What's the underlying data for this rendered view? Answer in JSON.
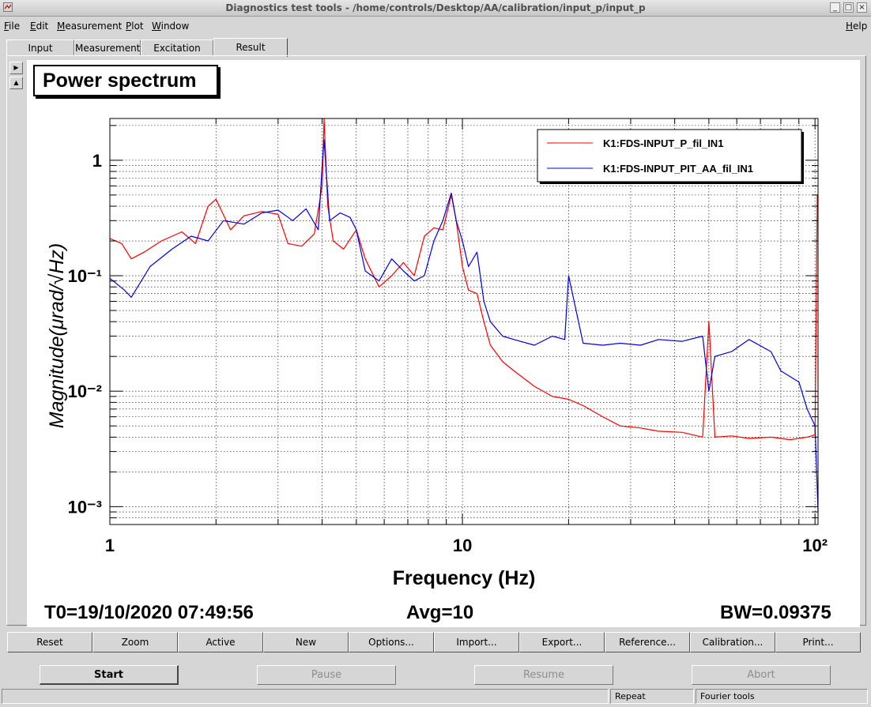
{
  "window": {
    "title": "Diagnostics test tools - /home/controls/Desktop/AA/calibration/input_p/input_p",
    "min_glyph": "_",
    "max_glyph": "□",
    "close_glyph": "×"
  },
  "menu": {
    "file": "F",
    "file_rest": "ile",
    "edit": "E",
    "edit_rest": "dit",
    "measurement": "M",
    "measurement_rest": "easurement",
    "plot": "P",
    "plot_rest": "lot",
    "window": "W",
    "window_rest": "indow",
    "help": "H",
    "help_rest": "elp"
  },
  "tabs": [
    "Input",
    "Measurement",
    "Excitation",
    "Result"
  ],
  "active_tab": "Result",
  "plot_title": "Power spectrum",
  "chart_data": {
    "type": "line",
    "xlabel": "Frequency (Hz)",
    "ylabel": "Magnitude(μrad/√Hz)",
    "xscale": "log",
    "yscale": "log",
    "xlim": [
      1,
      102
    ],
    "ylim": [
      0.0007,
      2.3
    ],
    "x_ticks": [
      "1",
      "10",
      "10²"
    ],
    "y_ticks": [
      "10⁻³",
      "10⁻²",
      "10⁻¹",
      "1"
    ],
    "grid": true,
    "legend_position": "top-right",
    "colors": {
      "red": "#ff0000",
      "blue": "#0000dd"
    },
    "series": [
      {
        "name": "K1:FDS-INPUT_P_fil_IN1",
        "color": "#ff0000",
        "x": [
          1,
          1.08,
          1.15,
          1.25,
          1.4,
          1.6,
          1.75,
          1.9,
          2.0,
          2.2,
          2.4,
          2.7,
          3.0,
          3.2,
          3.5,
          3.8,
          4.0,
          4.05,
          4.15,
          4.3,
          4.6,
          5.0,
          5.3,
          5.8,
          6.3,
          6.8,
          7.3,
          7.8,
          8.3,
          8.8,
          9.3,
          9.6,
          10.0,
          10.4,
          11.0,
          11.5,
          12.0,
          13.0,
          14.0,
          16.0,
          18.0,
          20.0,
          22.0,
          25.0,
          28.0,
          32.0,
          36.0,
          42.0,
          48.0,
          50.0,
          52.0,
          58.0,
          65.0,
          75.0,
          85.0,
          95.0,
          100.0,
          101.5
        ],
        "y": [
          0.21,
          0.19,
          0.14,
          0.16,
          0.2,
          0.24,
          0.19,
          0.4,
          0.46,
          0.25,
          0.33,
          0.36,
          0.34,
          0.19,
          0.18,
          0.23,
          0.6,
          2.3,
          0.4,
          0.2,
          0.17,
          0.25,
          0.14,
          0.08,
          0.1,
          0.13,
          0.1,
          0.22,
          0.26,
          0.25,
          0.5,
          0.3,
          0.12,
          0.075,
          0.07,
          0.04,
          0.025,
          0.018,
          0.015,
          0.011,
          0.009,
          0.0085,
          0.0075,
          0.006,
          0.005,
          0.0048,
          0.0045,
          0.0044,
          0.004,
          0.04,
          0.004,
          0.0041,
          0.0039,
          0.004,
          0.0038,
          0.004,
          0.0042,
          0.5
        ]
      },
      {
        "name": "K1:FDS-INPUT_PIT_AA_fil_IN1",
        "color": "#0000dd",
        "x": [
          1,
          1.1,
          1.15,
          1.3,
          1.5,
          1.7,
          1.9,
          2.1,
          2.4,
          2.7,
          3.0,
          3.3,
          3.6,
          3.9,
          4.0,
          4.05,
          4.2,
          4.5,
          4.8,
          5.0,
          5.3,
          5.8,
          6.3,
          6.8,
          7.3,
          7.8,
          8.3,
          8.8,
          9.3,
          9.6,
          10.0,
          10.4,
          11.0,
          11.5,
          12.0,
          13.0,
          14.0,
          16.0,
          18.0,
          19.5,
          20.0,
          22.0,
          25.0,
          28.0,
          32.0,
          36.0,
          42.0,
          48.0,
          50.0,
          52.0,
          58.0,
          65.0,
          75.0,
          80.0,
          90.0,
          95.0,
          100.0,
          102.0
        ],
        "y": [
          0.095,
          0.075,
          0.065,
          0.12,
          0.17,
          0.22,
          0.2,
          0.3,
          0.28,
          0.35,
          0.37,
          0.3,
          0.38,
          0.25,
          0.9,
          1.5,
          0.3,
          0.35,
          0.32,
          0.25,
          0.11,
          0.09,
          0.14,
          0.11,
          0.09,
          0.1,
          0.2,
          0.3,
          0.52,
          0.3,
          0.2,
          0.12,
          0.16,
          0.06,
          0.04,
          0.03,
          0.028,
          0.025,
          0.03,
          0.028,
          0.1,
          0.026,
          0.025,
          0.026,
          0.025,
          0.028,
          0.027,
          0.03,
          0.01,
          0.02,
          0.022,
          0.028,
          0.022,
          0.015,
          0.012,
          0.007,
          0.005,
          0.0009
        ]
      }
    ]
  },
  "info": {
    "t0": "T0=19/10/2020 07:49:56",
    "avg": "Avg=10",
    "bw": "BW=0.09375"
  },
  "plot_buttons": [
    "Reset",
    "Zoom",
    "Active",
    "New",
    "Options...",
    "Import...",
    "Export...",
    "Reference...",
    "Calibration...",
    "Print..."
  ],
  "controls": {
    "start": "Start",
    "pause": "Pause",
    "resume": "Resume",
    "abort": "Abort"
  },
  "status": {
    "repeat": "Repeat",
    "mode": "Fourier tools"
  }
}
